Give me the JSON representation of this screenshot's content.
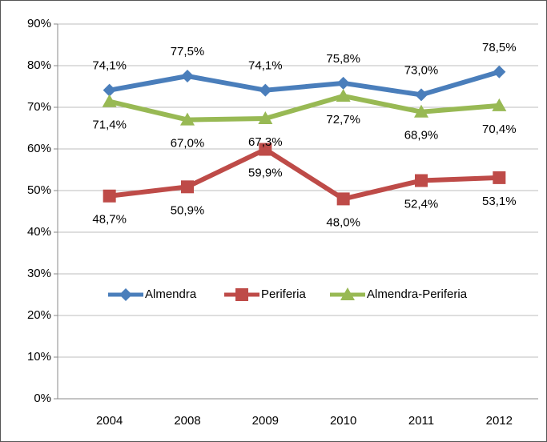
{
  "chart_data": {
    "type": "line",
    "categories": [
      "2004",
      "2008",
      "2009",
      "2010",
      "2011",
      "2012"
    ],
    "series": [
      {
        "name": "Almendra",
        "color": "#4a7ebb",
        "marker": "diamond",
        "values": [
          74.1,
          77.5,
          74.1,
          75.8,
          73.0,
          78.5
        ],
        "value_labels": [
          "74,1%",
          "77,5%",
          "74,1%",
          "75,8%",
          "73,0%",
          "78,5%"
        ]
      },
      {
        "name": "Periferia",
        "color": "#be4b48",
        "marker": "square",
        "values": [
          48.7,
          50.9,
          59.9,
          48.0,
          52.4,
          53.1
        ],
        "value_labels": [
          "48,7%",
          "50,9%",
          "59,9%",
          "48,0%",
          "52,4%",
          "53,1%"
        ]
      },
      {
        "name": "Almendra-Periferia",
        "color": "#98b954",
        "marker": "triangle",
        "values": [
          71.4,
          67.0,
          67.3,
          72.7,
          68.9,
          70.4
        ],
        "value_labels": [
          "71,4%",
          "67,0%",
          "67,3%",
          "72,7%",
          "68,9%",
          "70,4%"
        ]
      }
    ],
    "ylim": [
      0,
      90
    ],
    "yticks": [
      {
        "value": 0,
        "label": "0%"
      },
      {
        "value": 10,
        "label": "10%"
      },
      {
        "value": 20,
        "label": "20%"
      },
      {
        "value": 30,
        "label": "30%"
      },
      {
        "value": 40,
        "label": "40%"
      },
      {
        "value": 50,
        "label": "50%"
      },
      {
        "value": 60,
        "label": "60%"
      },
      {
        "value": 70,
        "label": "70%"
      },
      {
        "value": 80,
        "label": "80%"
      },
      {
        "value": 90,
        "label": "90%"
      }
    ],
    "grid": true,
    "legend": "center"
  }
}
